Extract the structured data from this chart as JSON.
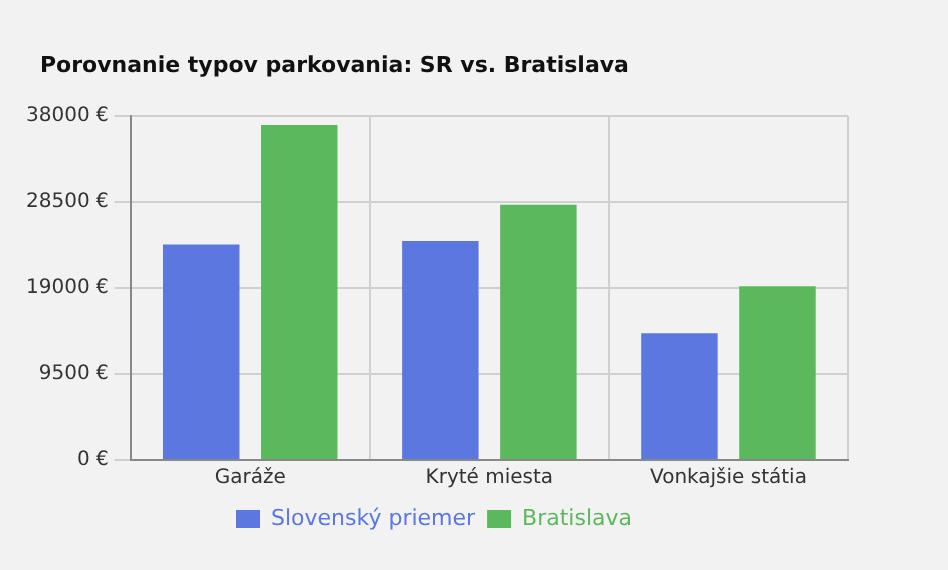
{
  "chart_data": {
    "type": "bar",
    "title": "Porovnanie typov parkovania: SR vs. Bratislava",
    "categories": [
      "Garáže",
      "Kryté miesta",
      "Vonkajšie státia"
    ],
    "series": [
      {
        "name": "Slovenský priemer",
        "color": "#5b78e0",
        "values": [
          23800,
          24200,
          14000
        ]
      },
      {
        "name": "Bratislava",
        "color": "#5cb85c",
        "values": [
          37000,
          28200,
          19200
        ]
      }
    ],
    "ylim": [
      0,
      38000
    ],
    "yticks": [
      {
        "value": 0,
        "label": "0 €"
      },
      {
        "value": 9500,
        "label": "9500 €"
      },
      {
        "value": 19000,
        "label": "19000 €"
      },
      {
        "value": 28500,
        "label": "28500 €"
      },
      {
        "value": 38000,
        "label": "38000 €"
      }
    ],
    "grid": true,
    "legend": "bottom"
  }
}
